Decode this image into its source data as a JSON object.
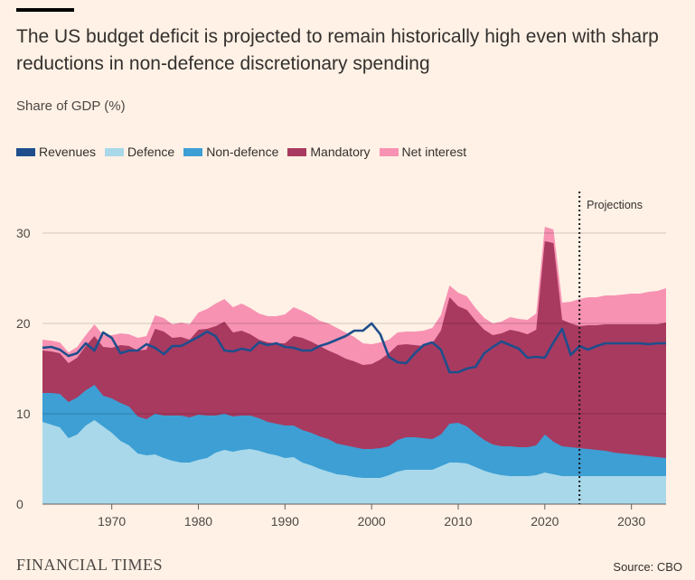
{
  "title": "The US budget deficit is projected to remain historically high even with sharp reductions in non-defence discretionary spending",
  "subtitle": "Share of GDP (%)",
  "source": "Source: CBO",
  "brand": "FINANCIAL TIMES",
  "colors": {
    "revenues": "#1f4e8c",
    "defence": "#a8d8ea",
    "non_defence": "#3d9fd4",
    "mandatory": "#a83a5f",
    "net_interest": "#f792b3",
    "background": "#fff1e5"
  },
  "chart_data": {
    "type": "area",
    "xlim": [
      1962,
      2034
    ],
    "ylim": [
      0,
      35
    ],
    "yticks": [
      0,
      10,
      20,
      30
    ],
    "xticks": [
      1970,
      1980,
      1990,
      2000,
      2010,
      2020,
      2030
    ],
    "grid": true,
    "legend_position": "top-left",
    "stacked": true,
    "annotation": {
      "label": "Projections",
      "x": 2024
    },
    "x": [
      1962,
      1963,
      1964,
      1965,
      1966,
      1967,
      1968,
      1969,
      1970,
      1971,
      1972,
      1973,
      1974,
      1975,
      1976,
      1977,
      1978,
      1979,
      1980,
      1981,
      1982,
      1983,
      1984,
      1985,
      1986,
      1987,
      1988,
      1989,
      1990,
      1991,
      1992,
      1993,
      1994,
      1995,
      1996,
      1997,
      1998,
      1999,
      2000,
      2001,
      2002,
      2003,
      2004,
      2005,
      2006,
      2007,
      2008,
      2009,
      2010,
      2011,
      2012,
      2013,
      2014,
      2015,
      2016,
      2017,
      2018,
      2019,
      2020,
      2021,
      2022,
      2023,
      2024,
      2025,
      2026,
      2027,
      2028,
      2029,
      2030,
      2031,
      2032,
      2033,
      2034
    ],
    "series": [
      {
        "name": "Defence",
        "type": "stack",
        "values": [
          9.1,
          8.8,
          8.5,
          7.3,
          7.7,
          8.7,
          9.3,
          8.6,
          7.9,
          7.0,
          6.5,
          5.6,
          5.4,
          5.5,
          5.1,
          4.8,
          4.6,
          4.6,
          4.9,
          5.1,
          5.7,
          6.0,
          5.8,
          6.0,
          6.1,
          5.9,
          5.6,
          5.4,
          5.1,
          5.2,
          4.6,
          4.3,
          3.9,
          3.6,
          3.3,
          3.2,
          3.0,
          2.9,
          2.9,
          2.9,
          3.2,
          3.6,
          3.8,
          3.8,
          3.8,
          3.8,
          4.2,
          4.6,
          4.6,
          4.5,
          4.1,
          3.7,
          3.4,
          3.2,
          3.1,
          3.1,
          3.1,
          3.2,
          3.5,
          3.3,
          3.1,
          3.1,
          3.1,
          3.1,
          3.1,
          3.1,
          3.1,
          3.1,
          3.1,
          3.1,
          3.1,
          3.1,
          3.1
        ]
      },
      {
        "name": "Non-defence",
        "type": "stack",
        "values": [
          3.2,
          3.5,
          3.7,
          4.0,
          4.1,
          3.9,
          3.9,
          3.4,
          3.8,
          4.2,
          4.3,
          4.1,
          4.0,
          4.5,
          4.7,
          5.0,
          5.2,
          5.0,
          5.0,
          4.7,
          4.1,
          4.0,
          3.9,
          3.8,
          3.7,
          3.6,
          3.5,
          3.5,
          3.6,
          3.5,
          3.6,
          3.6,
          3.6,
          3.6,
          3.4,
          3.3,
          3.3,
          3.2,
          3.2,
          3.3,
          3.2,
          3.5,
          3.6,
          3.6,
          3.5,
          3.4,
          3.5,
          4.3,
          4.4,
          4.1,
          3.7,
          3.4,
          3.2,
          3.2,
          3.3,
          3.2,
          3.2,
          3.3,
          4.2,
          3.6,
          3.3,
          3.2,
          3.1,
          3.0,
          2.9,
          2.8,
          2.6,
          2.5,
          2.4,
          2.3,
          2.2,
          2.1,
          2.0
        ]
      },
      {
        "name": "Mandatory",
        "type": "stack",
        "values": [
          4.7,
          4.6,
          4.5,
          4.3,
          4.4,
          4.9,
          5.4,
          5.4,
          5.6,
          6.4,
          6.7,
          7.3,
          7.7,
          9.4,
          9.3,
          8.6,
          8.7,
          8.6,
          9.4,
          9.6,
          9.9,
          10.2,
          9.3,
          9.4,
          9.0,
          8.7,
          8.8,
          8.9,
          9.1,
          9.9,
          10.2,
          10.1,
          10.0,
          9.8,
          9.9,
          9.6,
          9.5,
          9.3,
          9.4,
          9.8,
          10.3,
          10.5,
          10.3,
          10.2,
          10.2,
          10.6,
          11.5,
          14.0,
          12.9,
          12.9,
          12.5,
          12.2,
          12.1,
          12.5,
          12.9,
          12.8,
          12.5,
          12.8,
          21.4,
          22.0,
          14.0,
          13.7,
          13.5,
          13.7,
          13.8,
          14.0,
          14.2,
          14.3,
          14.4,
          14.5,
          14.6,
          14.7,
          15.0
        ]
      },
      {
        "name": "Net interest",
        "type": "stack",
        "values": [
          1.2,
          1.2,
          1.2,
          1.2,
          1.2,
          1.2,
          1.3,
          1.3,
          1.4,
          1.3,
          1.3,
          1.4,
          1.5,
          1.5,
          1.5,
          1.5,
          1.6,
          1.7,
          1.9,
          2.2,
          2.5,
          2.5,
          2.8,
          3.0,
          2.9,
          2.9,
          2.9,
          3.0,
          3.2,
          3.2,
          3.0,
          2.9,
          2.8,
          3.0,
          2.9,
          2.9,
          2.7,
          2.4,
          2.2,
          1.9,
          1.5,
          1.4,
          1.4,
          1.5,
          1.7,
          1.7,
          1.7,
          1.3,
          1.5,
          1.5,
          1.4,
          1.3,
          1.3,
          1.3,
          1.4,
          1.4,
          1.6,
          1.8,
          1.6,
          1.5,
          1.9,
          2.4,
          3.0,
          3.1,
          3.1,
          3.2,
          3.2,
          3.3,
          3.4,
          3.4,
          3.6,
          3.7,
          3.8
        ]
      },
      {
        "name": "Revenues",
        "type": "line",
        "values": [
          17.3,
          17.4,
          17.1,
          16.4,
          16.7,
          17.8,
          17.0,
          19.0,
          18.4,
          16.7,
          17.0,
          17.0,
          17.7,
          17.3,
          16.6,
          17.5,
          17.5,
          18.0,
          18.5,
          19.1,
          18.6,
          17.0,
          16.9,
          17.2,
          17.0,
          17.9,
          17.6,
          17.8,
          17.4,
          17.3,
          17.0,
          17.0,
          17.5,
          17.8,
          18.2,
          18.6,
          19.2,
          19.2,
          20.0,
          18.8,
          16.3,
          15.7,
          15.6,
          16.7,
          17.6,
          17.9,
          17.1,
          14.6,
          14.6,
          15.0,
          15.2,
          16.7,
          17.4,
          18.0,
          17.6,
          17.2,
          16.2,
          16.3,
          16.2,
          17.9,
          19.4,
          16.5,
          17.5,
          17.1,
          17.5,
          17.8,
          17.8,
          17.8,
          17.8,
          17.8,
          17.7,
          17.8,
          17.8
        ]
      }
    ]
  }
}
